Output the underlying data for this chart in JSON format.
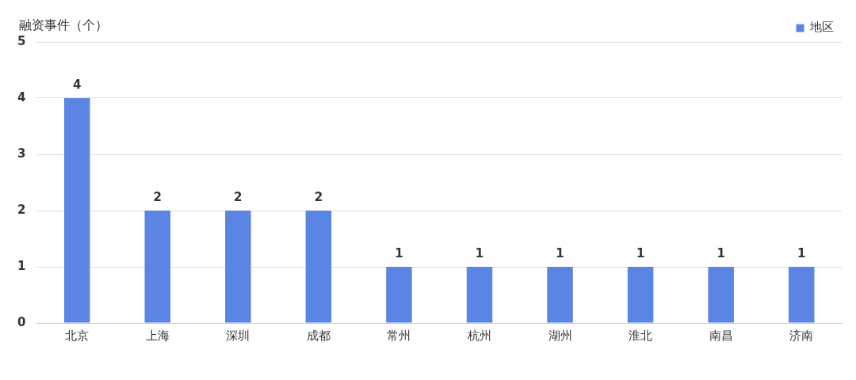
{
  "chart_data": {
    "type": "bar",
    "ylabel": "融资事件（个）",
    "categories": [
      "北京",
      "上海",
      "深圳",
      "成都",
      "常州",
      "杭州",
      "湖州",
      "淮北",
      "南昌",
      "济南"
    ],
    "series": [
      {
        "name": "地区",
        "color": "#5b85e4",
        "values": [
          4,
          2,
          2,
          2,
          1,
          1,
          1,
          1,
          1,
          1
        ]
      }
    ],
    "ylim": [
      0,
      5
    ],
    "yticks": [
      0,
      1,
      2,
      3,
      4,
      5
    ],
    "grid": "y",
    "legend": "top right",
    "data_labels": true
  }
}
